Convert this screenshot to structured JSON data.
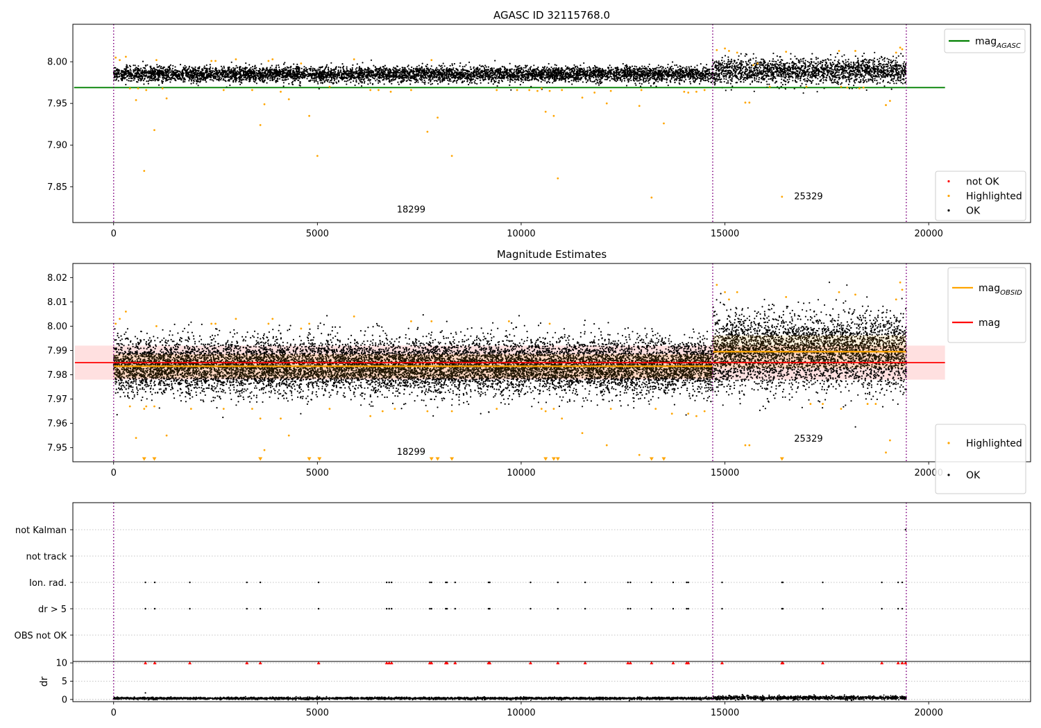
{
  "chart_data": [
    {
      "type": "scatter",
      "title": "AGASC ID 32115768.0",
      "xlim": [
        -1000,
        22500
      ],
      "ylim": [
        7.807,
        8.045
      ],
      "xticks": [
        0,
        5000,
        10000,
        15000,
        20000
      ],
      "yticks": [
        7.85,
        7.9,
        7.95,
        8.0
      ],
      "ytick_labels": [
        "7.85",
        "7.90",
        "7.95",
        "8.00"
      ],
      "vlines": [
        0,
        14700,
        19450
      ],
      "reference_line": {
        "name": "mag_AGASC",
        "label_base": "mag",
        "label_sub": "AGASC",
        "y": 7.969,
        "x_range": [
          0,
          20400
        ],
        "color": "#008000"
      },
      "annotations": [
        {
          "text": "18299",
          "x": 7300,
          "y": 7.819
        },
        {
          "text": "25329",
          "x": 17050,
          "y": 7.835
        }
      ],
      "legends": [
        {
          "placement": "upper-right",
          "entries": [
            {
              "label": "mag",
              "sub": "AGASC",
              "kind": "line",
              "color": "#008000"
            }
          ]
        },
        {
          "placement": "lower-right",
          "entries": [
            {
              "label": "not OK",
              "kind": "marker",
              "color": "#ff0000"
            },
            {
              "label": "Highlighted",
              "kind": "marker",
              "color": "#ffa500"
            },
            {
              "label": "OK",
              "kind": "marker",
              "color": "#000000"
            }
          ]
        }
      ],
      "series": [
        {
          "name": "OK",
          "color": "#000000",
          "segments": [
            {
              "x": [
                0,
                14700
              ],
              "center": 7.985,
              "sigma": 0.0045
            },
            {
              "x": [
                14700,
                19450
              ],
              "center": 7.989,
              "sigma": 0.0075
            }
          ]
        },
        {
          "name": "Highlighted",
          "color": "#ffa500",
          "x": [
            50,
            150,
            300,
            400,
            550,
            600,
            750,
            800,
            1000,
            1050,
            1200,
            1300,
            2400,
            2500,
            2700,
            3000,
            3400,
            3600,
            3700,
            3800,
            3900,
            4100,
            4300,
            4600,
            4800,
            5000,
            5300,
            5900,
            6300,
            6500,
            6800,
            7300,
            7700,
            7800,
            7950,
            8300,
            9400,
            9900,
            10200,
            10400,
            10500,
            10600,
            10700,
            10800,
            10900,
            11000,
            11500,
            11800,
            12100,
            12200,
            12900,
            12950,
            13200,
            13500,
            14000,
            14100,
            14300,
            14500,
            14800,
            15000,
            15100,
            15300,
            15500,
            15600,
            15700,
            15800,
            16100,
            16400,
            16500,
            17000,
            17800,
            17850,
            18000,
            18200,
            18300,
            18400,
            18950,
            19050,
            19200,
            19300,
            19350
          ],
          "y": [
            8.005,
            8.002,
            8.006,
            7.968,
            7.954,
            7.968,
            7.869,
            7.966,
            7.918,
            8.002,
            7.968,
            7.956,
            8.001,
            8.001,
            7.966,
            8.003,
            7.966,
            7.924,
            7.949,
            8.001,
            8.003,
            7.964,
            7.955,
            7.998,
            7.935,
            7.887,
            7.97,
            8.003,
            7.966,
            7.966,
            7.964,
            7.966,
            7.916,
            8.002,
            7.933,
            7.887,
            7.966,
            7.966,
            7.966,
            7.965,
            7.968,
            7.94,
            7.965,
            7.935,
            7.86,
            7.966,
            7.957,
            7.963,
            7.95,
            7.965,
            7.947,
            7.966,
            7.837,
            7.926,
            7.964,
            7.963,
            7.964,
            7.966,
            8.014,
            8.016,
            8.013,
            8.011,
            7.951,
            7.951,
            7.996,
            7.998,
            7.97,
            7.838,
            8.012,
            7.97,
            8.013,
            7.97,
            7.969,
            8.013,
            7.968,
            7.969,
            7.948,
            7.953,
            8.011,
            8.017,
            8.015
          ]
        },
        {
          "name": "not OK",
          "color": "#ff0000",
          "x": [],
          "y": []
        }
      ]
    },
    {
      "type": "scatter",
      "title": "Magnitude Estimates",
      "xlim": [
        -1000,
        22500
      ],
      "ylim": [
        7.9442,
        8.0258
      ],
      "xticks": [
        0,
        5000,
        10000,
        15000,
        20000
      ],
      "yticks": [
        7.95,
        7.96,
        7.97,
        7.98,
        7.99,
        8.0,
        8.01,
        8.02
      ],
      "ytick_labels": [
        "7.95",
        "7.96",
        "7.97",
        "7.98",
        "7.99",
        "8.00",
        "8.01",
        "8.02"
      ],
      "vlines": [
        0,
        14700,
        19450
      ],
      "band": {
        "name": "mag ± error",
        "y_range": [
          7.978,
          7.992
        ],
        "x_range": [
          -950,
          20400
        ],
        "color": "#ff0000"
      },
      "reference_lines": [
        {
          "name": "mag",
          "y": 7.985,
          "x_range": [
            -950,
            20400
          ],
          "color": "#ff0000"
        },
        {
          "name": "mag_OBSID",
          "label_base": "mag",
          "label_sub": "OBSID",
          "segments": [
            {
              "x": [
                0,
                14700
              ],
              "y": 7.9835
            },
            {
              "x": [
                14700,
                19450
              ],
              "y": 7.9895
            }
          ],
          "color": "#ffa500"
        }
      ],
      "annotations": [
        {
          "text": "18299",
          "x": 7300,
          "y": 7.947
        },
        {
          "text": "25329",
          "x": 17050,
          "y": 7.9525
        }
      ],
      "legends": [
        {
          "placement": "upper-right",
          "entries": [
            {
              "label": "mag",
              "sub": "OBSID",
              "kind": "line",
              "color": "#ffa500"
            },
            {
              "label": "mag",
              "kind": "line",
              "color": "#ff0000"
            }
          ]
        },
        {
          "placement": "lower-right",
          "entries": [
            {
              "label": "Highlighted",
              "kind": "marker",
              "color": "#ffa500"
            },
            {
              "label": "OK",
              "kind": "marker",
              "color": "#000000"
            }
          ]
        }
      ],
      "series": [
        {
          "name": "OK",
          "color": "#000000",
          "segments": [
            {
              "x": [
                0,
                14700
              ],
              "center": 7.9835,
              "sigma": 0.0055
            },
            {
              "x": [
                14700,
                19450
              ],
              "center": 7.9895,
              "sigma": 0.0075
            }
          ]
        },
        {
          "name": "Highlighted",
          "color": "#ffa500",
          "x": [
            50,
            150,
            300,
            400,
            550,
            750,
            800,
            1000,
            1050,
            1300,
            1900,
            2400,
            2500,
            2700,
            3000,
            3400,
            3600,
            3700,
            3800,
            3900,
            4100,
            4300,
            4600,
            4800,
            5300,
            5900,
            6300,
            6600,
            6900,
            7300,
            7700,
            7800,
            8300,
            9400,
            9700,
            10500,
            10600,
            10700,
            10800,
            11000,
            11500,
            12100,
            12200,
            12900,
            13300,
            13700,
            14100,
            14300,
            14500,
            14800,
            15000,
            15100,
            15300,
            15500,
            15600,
            16500,
            17100,
            17400,
            17800,
            17850,
            18200,
            18500,
            18700,
            18950,
            19050,
            19200,
            19300,
            19350
          ],
          "y": [
            8.001,
            8.003,
            8.006,
            7.967,
            7.954,
            7.966,
            7.967,
            7.967,
            8.0,
            7.955,
            7.966,
            8.001,
            8.001,
            7.966,
            8.003,
            7.966,
            7.962,
            7.949,
            8.001,
            8.003,
            7.962,
            7.955,
            7.999,
            8.001,
            7.966,
            8.004,
            7.963,
            7.965,
            7.966,
            8.002,
            7.965,
            8.002,
            7.965,
            7.966,
            8.002,
            7.966,
            7.965,
            8.001,
            7.966,
            7.962,
            7.956,
            7.951,
            7.966,
            7.947,
            7.966,
            7.964,
            7.964,
            7.963,
            7.965,
            8.017,
            8.014,
            8.011,
            8.014,
            7.951,
            7.951,
            8.012,
            7.968,
            7.968,
            8.014,
            7.966,
            8.013,
            7.968,
            7.968,
            7.948,
            7.953,
            8.011,
            8.018,
            8.015
          ]
        },
        {
          "name": "Highlighted below axis",
          "color": "#ffa500",
          "marker": "triangle-down",
          "x": [
            750,
            1000,
            3600,
            4800,
            5050,
            7800,
            7950,
            8300,
            10600,
            10800,
            10900,
            13200,
            13500,
            16400
          ],
          "y": [
            7.9452,
            7.9452,
            7.9452,
            7.9452,
            7.9452,
            7.9452,
            7.9452,
            7.9452,
            7.9452,
            7.9452,
            7.9452,
            7.9452,
            7.9452,
            7.9452
          ]
        }
      ]
    },
    {
      "type": "scatter",
      "title": "",
      "xlim": [
        -1000,
        22500
      ],
      "categories": [
        "OBS not OK",
        "dr > 5",
        "Ion. rad.",
        "not track",
        "not Kalman"
      ],
      "vlines": [
        0,
        14700,
        19450
      ],
      "series": [
        {
          "name": "dr > 5",
          "color": "#000000",
          "x": [
            780,
            1010,
            1870,
            3270,
            3600,
            5030,
            6700,
            6760,
            6820,
            7760,
            7800,
            8150,
            8180,
            8380,
            9200,
            9230,
            10230,
            10900,
            11570,
            12620,
            12680,
            13200,
            13730,
            14060,
            14100,
            14930,
            16400,
            16420,
            17400,
            18850,
            19250,
            19350
          ]
        },
        {
          "name": "Ion. rad.",
          "color": "#000000",
          "x": [
            780,
            1010,
            1870,
            3270,
            3600,
            5030,
            6700,
            6760,
            6820,
            7760,
            7800,
            8150,
            8180,
            8380,
            9200,
            9230,
            10230,
            10900,
            11570,
            12620,
            12680,
            13200,
            13730,
            14060,
            14100,
            14930,
            16400,
            16420,
            17400,
            18850,
            19250,
            19350
          ]
        },
        {
          "name": "not Kalman",
          "color": "#000000",
          "x": [
            19430
          ]
        }
      ]
    },
    {
      "type": "scatter",
      "title": "",
      "ylabel": "dr",
      "xlim": [
        -1000,
        22500
      ],
      "ylim": [
        -0.6,
        10.4
      ],
      "xticks": [
        0,
        5000,
        10000,
        15000,
        20000
      ],
      "yticks": [
        0,
        5,
        10
      ],
      "ytick_labels": [
        "0",
        "5",
        "10"
      ],
      "vlines": [
        0,
        14700,
        19450
      ],
      "series": [
        {
          "name": "dr",
          "color": "#000000",
          "segments": [
            {
              "x": [
                0,
                14700
              ],
              "center": 0.3,
              "sigma": 0.15
            },
            {
              "x": [
                14700,
                19450
              ],
              "center": 0.45,
              "sigma": 0.25
            }
          ],
          "outliers": {
            "x": [
              780
            ],
            "y": [
              1.8
            ]
          }
        },
        {
          "name": "dr > 10 (clipped)",
          "color": "#ff0000",
          "marker": "triangle-up",
          "x": [
            780,
            1010,
            1870,
            3270,
            3600,
            5030,
            6700,
            6760,
            6820,
            7760,
            7800,
            8150,
            8180,
            8380,
            9200,
            9230,
            10230,
            10900,
            11570,
            12620,
            12680,
            13200,
            13730,
            14060,
            14100,
            14930,
            16400,
            16420,
            17400,
            18850,
            19250,
            19350,
            19430
          ],
          "y": [
            10,
            10,
            10,
            10,
            10,
            10,
            10,
            10,
            10,
            10,
            10,
            10,
            10,
            10,
            10,
            10,
            10,
            10,
            10,
            10,
            10,
            10,
            10,
            10,
            10,
            10,
            10,
            10,
            10,
            10,
            10,
            10,
            10
          ]
        }
      ]
    }
  ]
}
